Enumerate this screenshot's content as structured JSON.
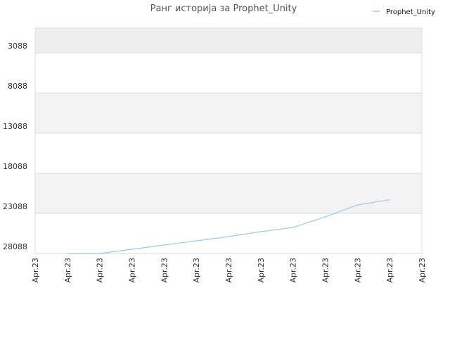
{
  "chart_data": {
    "type": "line",
    "title": "Ранг историја за Prophet_Unity",
    "categories": [
      "Apr.23",
      "Apr.23",
      "Apr.23",
      "Apr.23",
      "Apr.23",
      "Apr.23",
      "Apr.23",
      "Apr.23",
      "Apr.23",
      "Apr.23",
      "Apr.23",
      "Apr.23",
      "Apr.23"
    ],
    "series": [
      {
        "name": "Prophet_Unity",
        "color": "#99c8ee",
        "values": [
          null,
          28088,
          28088,
          27562,
          27035,
          26509,
          25983,
          25369,
          24842,
          23527,
          22035,
          21378,
          null
        ]
      }
    ],
    "ylim": [
      28088,
      0
    ],
    "yticks": [
      3088,
      8088,
      13088,
      18088,
      23088,
      28088
    ],
    "grid": true,
    "legend": "top-right"
  }
}
